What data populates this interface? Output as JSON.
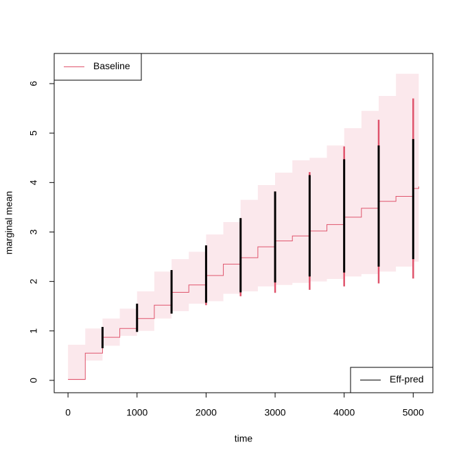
{
  "chart_data": {
    "type": "line",
    "xlabel": "time",
    "ylabel": "marginal mean",
    "xlim": [
      -200,
      5285
    ],
    "ylim": [
      -0.25,
      6.61
    ],
    "xticks": [
      0,
      1000,
      2000,
      3000,
      4000,
      5000
    ],
    "yticks": [
      0,
      1,
      2,
      3,
      4,
      5,
      6
    ],
    "x": [
      0,
      250,
      500,
      750,
      1000,
      1250,
      1500,
      1750,
      2000,
      2250,
      2500,
      2750,
      3000,
      3250,
      3500,
      3750,
      4000,
      4250,
      4500,
      4750,
      5000,
      5080
    ],
    "interval_x": [
      500,
      1000,
      1500,
      2000,
      2500,
      3000,
      3500,
      4000,
      4500,
      5000
    ],
    "series": [
      {
        "name": "Baseline",
        "color": "#df536b",
        "band_color": "#fbe8ec",
        "legend": "top-left",
        "values": [
          0.02,
          0.55,
          0.87,
          1.05,
          1.25,
          1.52,
          1.78,
          1.93,
          2.12,
          2.35,
          2.48,
          2.7,
          2.82,
          2.92,
          3.02,
          3.15,
          3.3,
          3.48,
          3.62,
          3.72,
          3.88,
          3.92
        ],
        "lower": [
          0,
          0.4,
          0.7,
          0.9,
          1.0,
          1.25,
          1.4,
          1.55,
          1.6,
          1.75,
          1.8,
          1.9,
          1.93,
          1.97,
          2.0,
          2.05,
          2.1,
          2.15,
          2.2,
          2.3,
          2.4,
          2.45
        ],
        "upper": [
          0.05,
          0.72,
          1.05,
          1.25,
          1.45,
          1.8,
          2.2,
          2.45,
          2.6,
          2.95,
          3.2,
          3.65,
          3.95,
          4.2,
          4.45,
          4.5,
          4.75,
          5.1,
          5.45,
          5.75,
          6.2,
          6.2
        ],
        "interval_lower": [
          0.65,
          0.98,
          1.35,
          1.52,
          1.7,
          1.77,
          1.83,
          1.9,
          1.96,
          2.06
        ],
        "interval_upper": [
          1.08,
          1.55,
          2.23,
          2.73,
          3.28,
          3.82,
          4.21,
          4.73,
          5.27,
          5.7
        ]
      },
      {
        "name": "Eff-pred",
        "color": "#000000",
        "legend": "bottom-right",
        "interval_lower": [
          0.65,
          0.98,
          1.35,
          1.57,
          1.78,
          1.98,
          2.1,
          2.18,
          2.3,
          2.45
        ],
        "interval_upper": [
          1.08,
          1.55,
          2.23,
          2.73,
          3.28,
          3.82,
          4.15,
          4.47,
          4.75,
          4.88
        ]
      }
    ]
  }
}
